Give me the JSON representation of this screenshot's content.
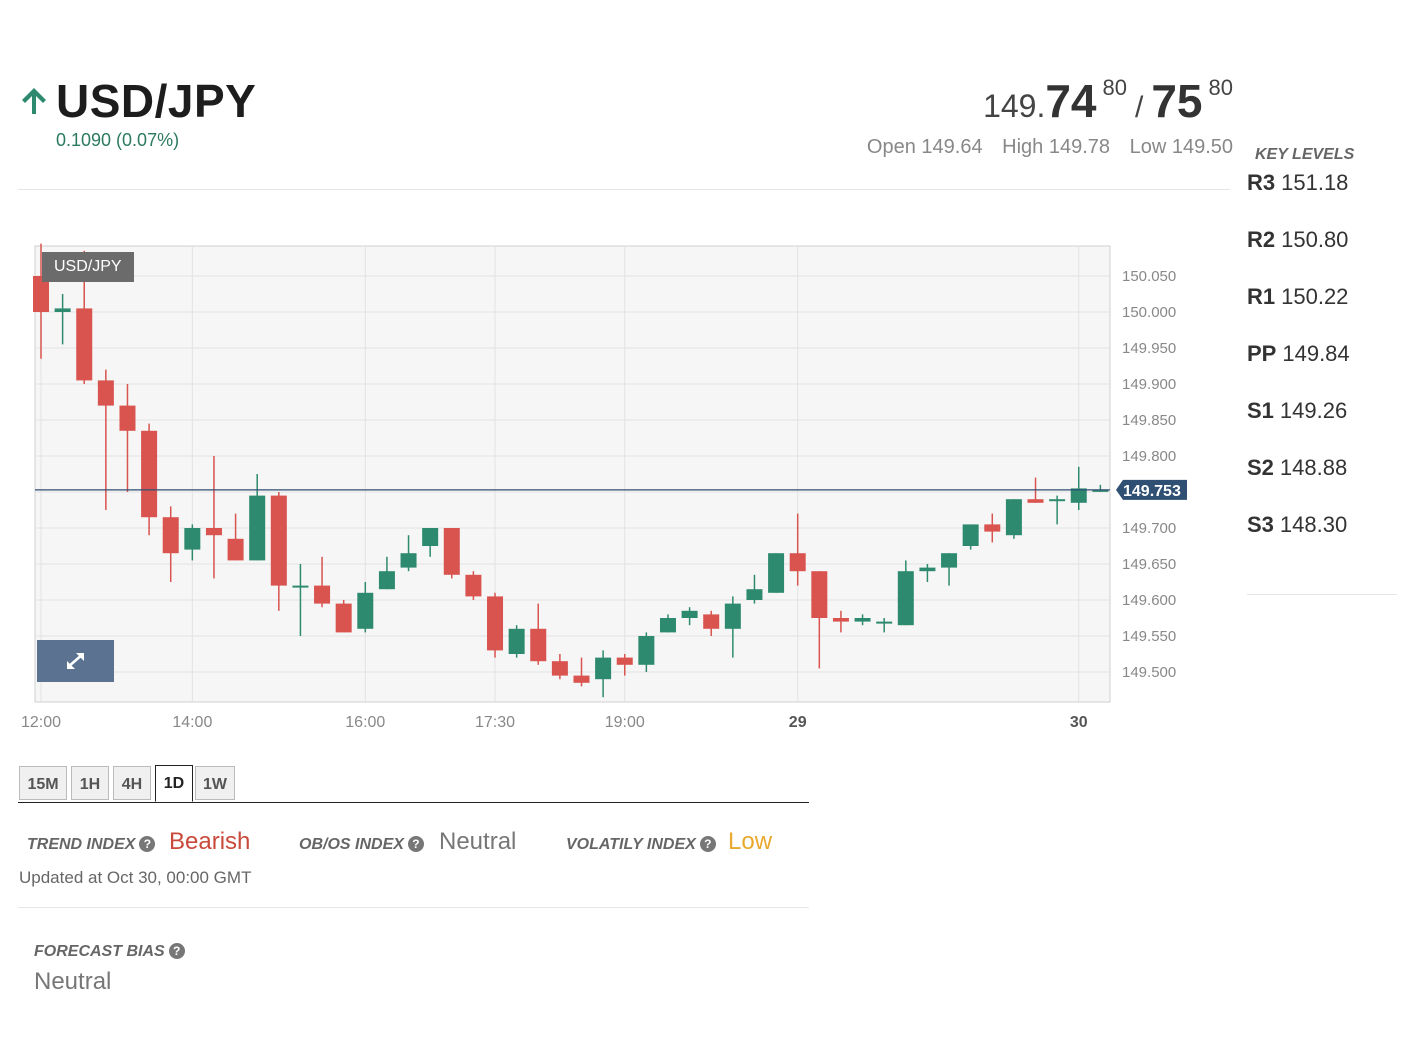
{
  "header": {
    "pair": "USD/JPY",
    "change": "0.1090 (0.07%)",
    "bid_prefix": "149.",
    "bid_big": "74",
    "bid_small": "80",
    "ask_big": "75",
    "ask_small": "80",
    "open": "Open 149.64",
    "high": "High 149.78",
    "low": "Low 149.50"
  },
  "key_levels": {
    "title": "KEY LEVELS",
    "items": [
      {
        "name": "R3",
        "value": "151.18"
      },
      {
        "name": "R2",
        "value": "150.80"
      },
      {
        "name": "R1",
        "value": "150.22"
      },
      {
        "name": "PP",
        "value": "149.84"
      },
      {
        "name": "S1",
        "value": "149.26"
      },
      {
        "name": "S2",
        "value": "148.88"
      },
      {
        "name": "S3",
        "value": "148.30"
      }
    ]
  },
  "chart_data": {
    "type": "candlestick",
    "symbol_label": "USD/JPY",
    "ylim": [
      149.465,
      150.095
    ],
    "y_ticks": [
      "150.050",
      "150.000",
      "149.950",
      "149.900",
      "149.850",
      "149.800",
      "149.700",
      "149.650",
      "149.600",
      "149.550",
      "149.500"
    ],
    "x_ticks": [
      {
        "label": "12:00",
        "i": 0
      },
      {
        "label": "14:00",
        "i": 7
      },
      {
        "label": "16:00",
        "i": 15
      },
      {
        "label": "17:30",
        "i": 21
      },
      {
        "label": "19:00",
        "i": 27
      },
      {
        "label": "29",
        "i": 35
      },
      {
        "label": "30",
        "i": 48
      }
    ],
    "last_price": "149.753",
    "up_color": "#2e8a6e",
    "down_color": "#d9534f",
    "candles": [
      {
        "o": 150.05,
        "h": 150.095,
        "l": 149.935,
        "c": 150.0
      },
      {
        "o": 150.0,
        "h": 150.025,
        "l": 149.955,
        "c": 150.005
      },
      {
        "o": 150.005,
        "h": 150.085,
        "l": 149.9,
        "c": 149.905
      },
      {
        "o": 149.905,
        "h": 149.92,
        "l": 149.725,
        "c": 149.87
      },
      {
        "o": 149.87,
        "h": 149.9,
        "l": 149.75,
        "c": 149.835
      },
      {
        "o": 149.835,
        "h": 149.845,
        "l": 149.69,
        "c": 149.715
      },
      {
        "o": 149.715,
        "h": 149.73,
        "l": 149.625,
        "c": 149.665
      },
      {
        "o": 149.67,
        "h": 149.705,
        "l": 149.655,
        "c": 149.7
      },
      {
        "o": 149.7,
        "h": 149.8,
        "l": 149.63,
        "c": 149.69
      },
      {
        "o": 149.685,
        "h": 149.72,
        "l": 149.655,
        "c": 149.655
      },
      {
        "o": 149.655,
        "h": 149.775,
        "l": 149.655,
        "c": 149.745
      },
      {
        "o": 149.745,
        "h": 149.75,
        "l": 149.585,
        "c": 149.62
      },
      {
        "o": 149.62,
        "h": 149.65,
        "l": 149.55,
        "c": 149.62
      },
      {
        "o": 149.62,
        "h": 149.66,
        "l": 149.59,
        "c": 149.595
      },
      {
        "o": 149.595,
        "h": 149.6,
        "l": 149.555,
        "c": 149.555
      },
      {
        "o": 149.56,
        "h": 149.625,
        "l": 149.555,
        "c": 149.61
      },
      {
        "o": 149.615,
        "h": 149.66,
        "l": 149.615,
        "c": 149.64
      },
      {
        "o": 149.645,
        "h": 149.69,
        "l": 149.64,
        "c": 149.665
      },
      {
        "o": 149.675,
        "h": 149.7,
        "l": 149.66,
        "c": 149.7
      },
      {
        "o": 149.7,
        "h": 149.7,
        "l": 149.63,
        "c": 149.635
      },
      {
        "o": 149.635,
        "h": 149.64,
        "l": 149.6,
        "c": 149.605
      },
      {
        "o": 149.605,
        "h": 149.61,
        "l": 149.52,
        "c": 149.53
      },
      {
        "o": 149.525,
        "h": 149.565,
        "l": 149.52,
        "c": 149.56
      },
      {
        "o": 149.56,
        "h": 149.595,
        "l": 149.51,
        "c": 149.515
      },
      {
        "o": 149.515,
        "h": 149.525,
        "l": 149.49,
        "c": 149.495
      },
      {
        "o": 149.495,
        "h": 149.52,
        "l": 149.48,
        "c": 149.485
      },
      {
        "o": 149.49,
        "h": 149.53,
        "l": 149.465,
        "c": 149.52
      },
      {
        "o": 149.52,
        "h": 149.525,
        "l": 149.495,
        "c": 149.51
      },
      {
        "o": 149.51,
        "h": 149.555,
        "l": 149.5,
        "c": 149.55
      },
      {
        "o": 149.555,
        "h": 149.58,
        "l": 149.555,
        "c": 149.575
      },
      {
        "o": 149.575,
        "h": 149.59,
        "l": 149.565,
        "c": 149.585
      },
      {
        "o": 149.58,
        "h": 149.585,
        "l": 149.55,
        "c": 149.56
      },
      {
        "o": 149.56,
        "h": 149.605,
        "l": 149.52,
        "c": 149.595
      },
      {
        "o": 149.6,
        "h": 149.635,
        "l": 149.595,
        "c": 149.615
      },
      {
        "o": 149.61,
        "h": 149.665,
        "l": 149.61,
        "c": 149.665
      },
      {
        "o": 149.665,
        "h": 149.72,
        "l": 149.62,
        "c": 149.64
      },
      {
        "o": 149.64,
        "h": 149.64,
        "l": 149.505,
        "c": 149.575
      },
      {
        "o": 149.575,
        "h": 149.585,
        "l": 149.555,
        "c": 149.57
      },
      {
        "o": 149.57,
        "h": 149.58,
        "l": 149.565,
        "c": 149.575
      },
      {
        "o": 149.57,
        "h": 149.575,
        "l": 149.555,
        "c": 149.57
      },
      {
        "o": 149.565,
        "h": 149.655,
        "l": 149.565,
        "c": 149.64
      },
      {
        "o": 149.64,
        "h": 149.65,
        "l": 149.625,
        "c": 149.645
      },
      {
        "o": 149.645,
        "h": 149.665,
        "l": 149.62,
        "c": 149.665
      },
      {
        "o": 149.675,
        "h": 149.705,
        "l": 149.67,
        "c": 149.705
      },
      {
        "o": 149.705,
        "h": 149.72,
        "l": 149.68,
        "c": 149.695
      },
      {
        "o": 149.69,
        "h": 149.74,
        "l": 149.685,
        "c": 149.74
      },
      {
        "o": 149.74,
        "h": 149.77,
        "l": 149.735,
        "c": 149.735
      },
      {
        "o": 149.74,
        "h": 149.745,
        "l": 149.705,
        "c": 149.74
      },
      {
        "o": 149.735,
        "h": 149.785,
        "l": 149.725,
        "c": 149.755
      },
      {
        "o": 149.752,
        "h": 149.76,
        "l": 149.75,
        "c": 149.753
      }
    ]
  },
  "timeframes": {
    "items": [
      "15M",
      "1H",
      "4H",
      "1D",
      "1W"
    ],
    "active": "1D"
  },
  "indexes": {
    "trend_label": "TREND INDEX",
    "trend_value": "Bearish",
    "obos_label": "OB/OS INDEX",
    "obos_value": "Neutral",
    "vol_label": "VOLATILY INDEX",
    "vol_value": "Low",
    "help": "?",
    "updated": "Updated at Oct 30, 00:00 GMT"
  },
  "forecast": {
    "label": "FORECAST BIAS",
    "value": "Neutral"
  },
  "colors": {
    "up": "#2e8a6e",
    "down": "#d9534f",
    "bearish": "#c9493b",
    "neutral": "#777777",
    "low": "#e8a92e",
    "price_tag": "#2f4f73"
  }
}
